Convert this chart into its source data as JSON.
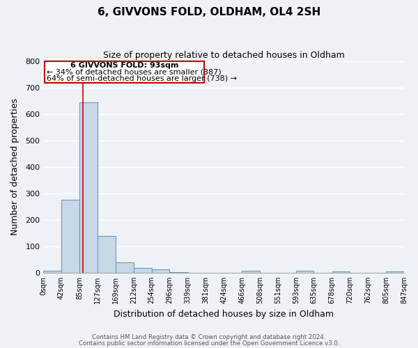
{
  "title": "6, GIVVONS FOLD, OLDHAM, OL4 2SH",
  "subtitle": "Size of property relative to detached houses in Oldham",
  "xlabel": "Distribution of detached houses by size in Oldham",
  "ylabel": "Number of detached properties",
  "bin_edges": [
    0,
    42,
    85,
    127,
    169,
    212,
    254,
    296,
    339,
    381,
    424,
    466,
    508,
    551,
    593,
    635,
    678,
    720,
    762,
    805,
    847
  ],
  "bin_labels": [
    "0sqm",
    "42sqm",
    "85sqm",
    "127sqm",
    "169sqm",
    "212sqm",
    "254sqm",
    "296sqm",
    "339sqm",
    "381sqm",
    "424sqm",
    "466sqm",
    "508sqm",
    "551sqm",
    "593sqm",
    "635sqm",
    "678sqm",
    "720sqm",
    "762sqm",
    "805sqm",
    "847sqm"
  ],
  "bar_heights": [
    8,
    275,
    645,
    140,
    38,
    18,
    12,
    3,
    0,
    0,
    0,
    8,
    0,
    0,
    7,
    0,
    5,
    0,
    0,
    5
  ],
  "bar_color": "#c8d8e8",
  "bar_edge_color": "#6699bb",
  "ylim": [
    0,
    800
  ],
  "yticks": [
    0,
    100,
    200,
    300,
    400,
    500,
    600,
    700,
    800
  ],
  "property_line_x": 93,
  "property_line_color": "#cc0000",
  "ann_line1": "6 GIVVONS FOLD: 93sqm",
  "ann_line2": "← 34% of detached houses are smaller (387)",
  "ann_line3": "64% of semi-detached houses are larger (738) →",
  "footer_line1": "Contains HM Land Registry data © Crown copyright and database right 2024.",
  "footer_line2": "Contains public sector information licensed under the Open Government Licence v3.0.",
  "background_color": "#eef2f7",
  "grid_color": "#ffffff"
}
